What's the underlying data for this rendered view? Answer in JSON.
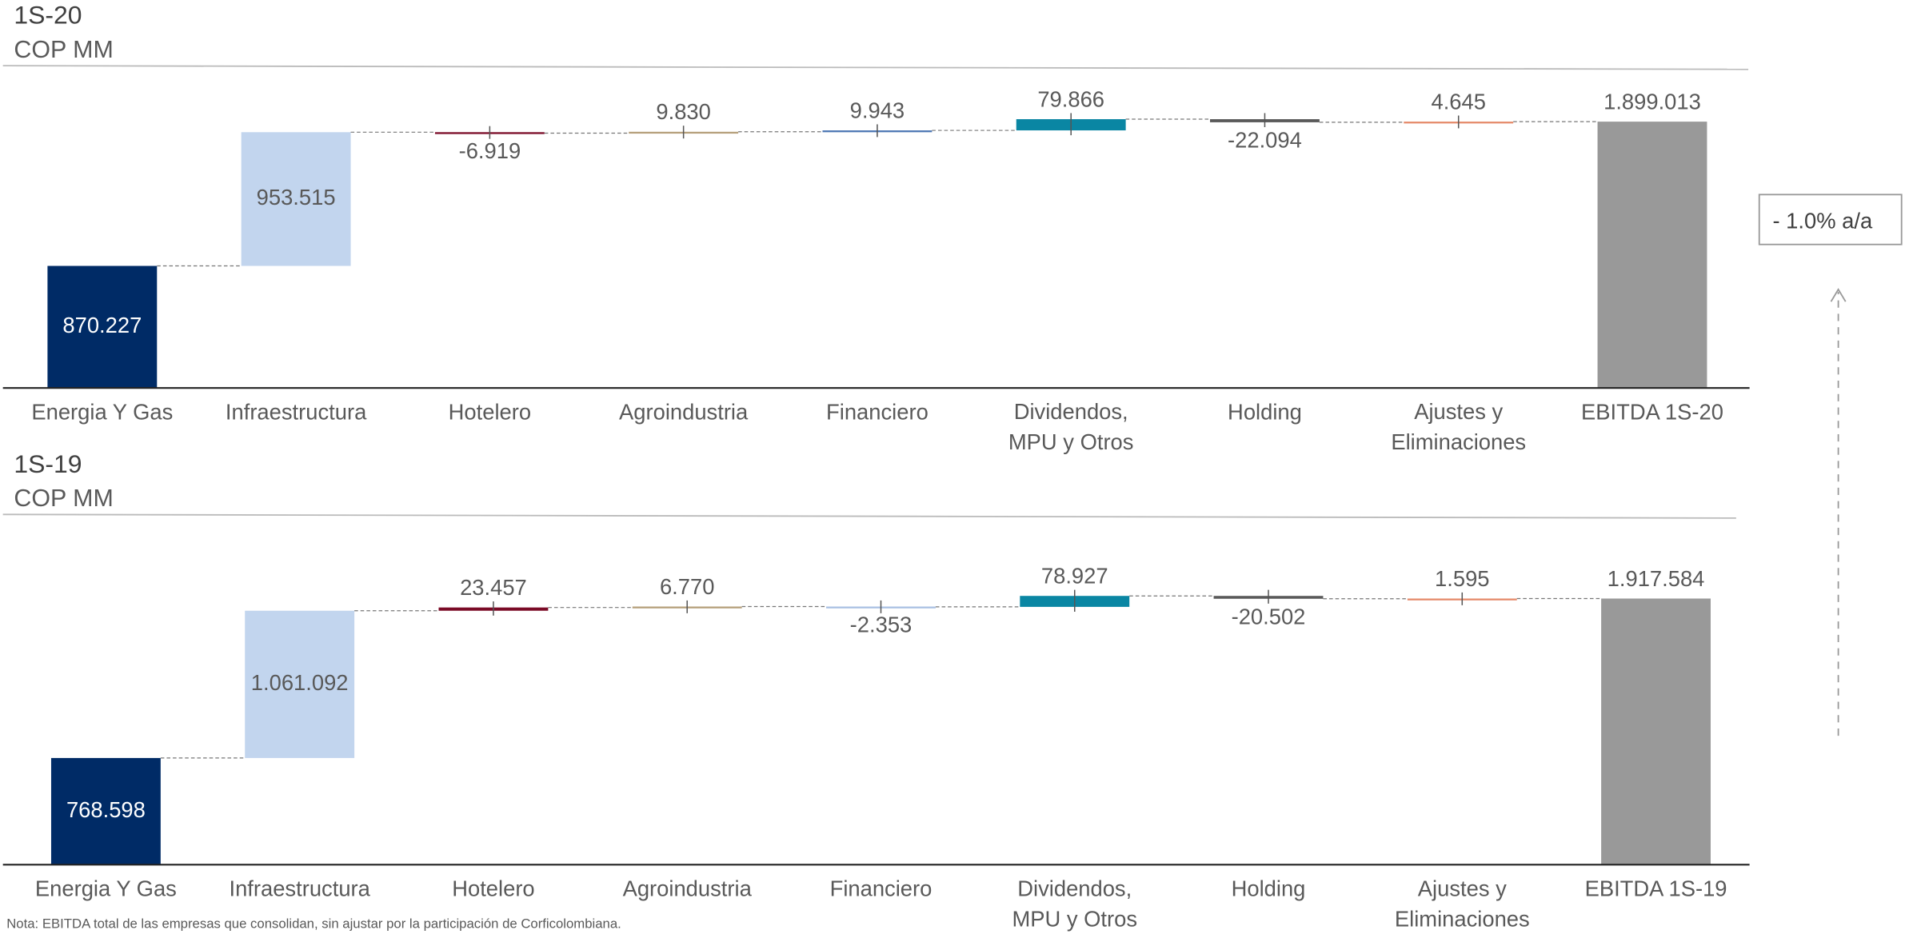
{
  "chart_data": [
    {
      "type": "waterfall",
      "title": "1S-20",
      "subtitle": "COP MM",
      "categories": [
        "Energia Y Gas",
        "Infraestructura",
        "Hotelero",
        "Agroindustria",
        "Financiero",
        "Dividendos, MPU y Otros",
        "Holding",
        "Ajustes y Eliminaciones",
        "EBITDA 1S-20"
      ],
      "values": [
        870227,
        953515,
        -6919,
        9830,
        9943,
        79866,
        -22094,
        4645,
        1899013
      ],
      "value_labels": [
        "870.227",
        "953.515",
        "-6.919",
        "9.830",
        "9.943",
        "79.866",
        "-22.094",
        "4.645",
        "1.899.013"
      ],
      "colors": [
        "#002b66",
        "#c2d5ee",
        "#7a0a26",
        "#b59f7a",
        "#4f79b5",
        "#0a86a3",
        "#5a5a5a",
        "#e58a6a",
        "#999999"
      ]
    },
    {
      "type": "waterfall",
      "title": "1S-19",
      "subtitle": "COP MM",
      "categories": [
        "Energia Y Gas",
        "Infraestructura",
        "Hotelero",
        "Agroindustria",
        "Financiero",
        "Dividendos, MPU y Otros",
        "Holding",
        "Ajustes y Eliminaciones",
        "EBITDA 1S-19"
      ],
      "values": [
        768598,
        1061092,
        23457,
        6770,
        -2353,
        78927,
        -20502,
        1595,
        1917584
      ],
      "value_labels": [
        "768.598",
        "1.061.092",
        "23.457",
        "6.770",
        "-2.353",
        "78.927",
        "-20.502",
        "1.595",
        "1.917.584"
      ],
      "colors": [
        "#002b66",
        "#c2d5ee",
        "#7a0a26",
        "#b59f7a",
        "#a9c0e3",
        "#0a86a3",
        "#5a5a5a",
        "#e58a6a",
        "#999999"
      ]
    }
  ],
  "annotation": "- 1.0% a/a",
  "note": "Nota: EBITDA total de las empresas que consolidan, sin ajustar por la participación de Corficolombiana."
}
